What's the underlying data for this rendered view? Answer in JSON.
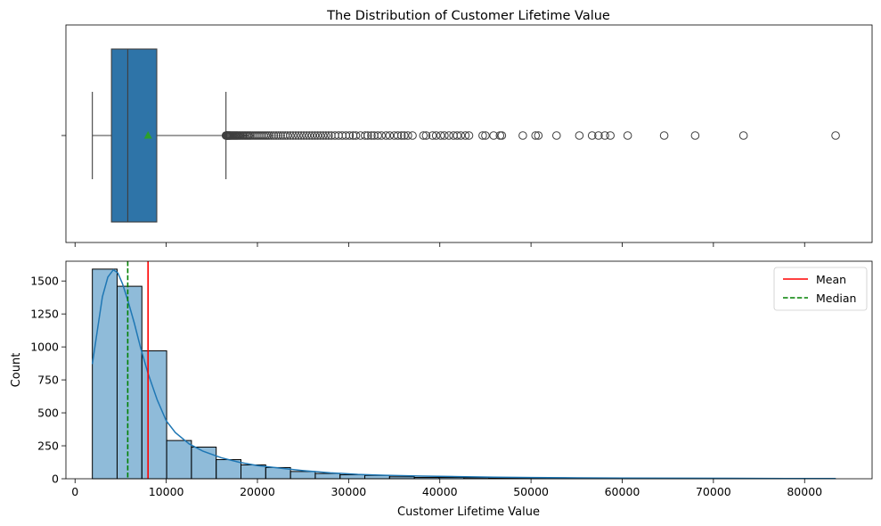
{
  "chart_data": [
    {
      "type": "box",
      "title": "The Distribution of Customer Lifetime Value",
      "xlabel": "",
      "ylabel": "",
      "xlim": [
        -1000,
        87400
      ],
      "show_mean": true,
      "box": {
        "whisker_low": 1898,
        "q1": 3995,
        "median": 5780,
        "q3": 8962,
        "whisker_high": 16550,
        "mean": 8005
      },
      "outliers": [
        16550,
        16600,
        16650,
        16700,
        16780,
        16850,
        16900,
        16980,
        17050,
        17150,
        17250,
        17350,
        17450,
        17550,
        17650,
        17750,
        17850,
        17980,
        18100,
        18250,
        18400,
        18550,
        18700,
        18850,
        19000,
        19150,
        19300,
        19500,
        19700,
        19900,
        20100,
        20300,
        20500,
        20700,
        20900,
        21100,
        21300,
        21550,
        21800,
        22050,
        22300,
        22550,
        22800,
        23050,
        23300,
        23600,
        23900,
        24200,
        24500,
        24800,
        25100,
        25400,
        25700,
        26000,
        26300,
        26600,
        26900,
        27200,
        27500,
        27800,
        28100,
        28500,
        28900,
        29300,
        29700,
        30100,
        30500,
        30800,
        31300,
        31800,
        32100,
        32500,
        32800,
        33200,
        33600,
        34100,
        34500,
        35000,
        35400,
        35800,
        36100,
        36500,
        37000,
        38200,
        38500,
        39200,
        39600,
        40100,
        40500,
        41000,
        41500,
        41900,
        42300,
        42800,
        43200,
        44700,
        45000,
        45900,
        46600,
        46800,
        49100,
        50500,
        50800,
        52800,
        55300,
        56700,
        57400,
        58100,
        58700,
        60600,
        64600,
        68000,
        73300,
        83400
      ]
    },
    {
      "type": "histogram",
      "title": "",
      "xlabel": "Customer Lifetime Value",
      "ylabel": "Count",
      "xlim": [
        -1000,
        87400
      ],
      "ylim": [
        0,
        1650
      ],
      "xticks": [
        0,
        10000,
        20000,
        30000,
        40000,
        50000,
        60000,
        70000,
        80000
      ],
      "yticks": [
        0,
        250,
        500,
        750,
        1000,
        1250,
        1500
      ],
      "bins": {
        "start": 1898,
        "width": 2716,
        "counts": [
          1590,
          1460,
          970,
          290,
          240,
          145,
          105,
          85,
          55,
          40,
          30,
          25,
          15,
          10,
          10,
          8,
          6,
          5,
          5,
          4,
          3,
          3,
          2,
          2,
          2,
          1,
          1,
          1,
          1,
          1
        ]
      },
      "kde": {
        "x": [
          1898,
          2500,
          3000,
          3600,
          4200,
          4700,
          5200,
          5800,
          6500,
          7200,
          8000,
          9000,
          10000,
          11000,
          12500,
          14000,
          16000,
          18000,
          20000,
          22500,
          25000,
          28000,
          31000,
          34000,
          38000,
          42000,
          46000,
          50000,
          55000,
          60000,
          66000,
          72000,
          78000,
          83400
        ],
        "y": [
          870,
          1150,
          1380,
          1530,
          1585,
          1560,
          1480,
          1350,
          1180,
          990,
          800,
          600,
          440,
          350,
          265,
          210,
          160,
          125,
          100,
          80,
          62,
          45,
          33,
          26,
          20,
          16,
          12,
          9,
          7,
          5,
          4,
          3,
          2,
          2
        ]
      },
      "reference_lines": [
        {
          "name": "Mean",
          "value": 8005,
          "color": "#ff0000",
          "style": "solid"
        },
        {
          "name": "Median",
          "value": 5780,
          "color": "#008000",
          "style": "dashed"
        }
      ],
      "legend_position": "upper right",
      "bar_color": "#1f77b4",
      "bar_alpha": 0.5,
      "kde_color": "#1f77b4"
    }
  ]
}
